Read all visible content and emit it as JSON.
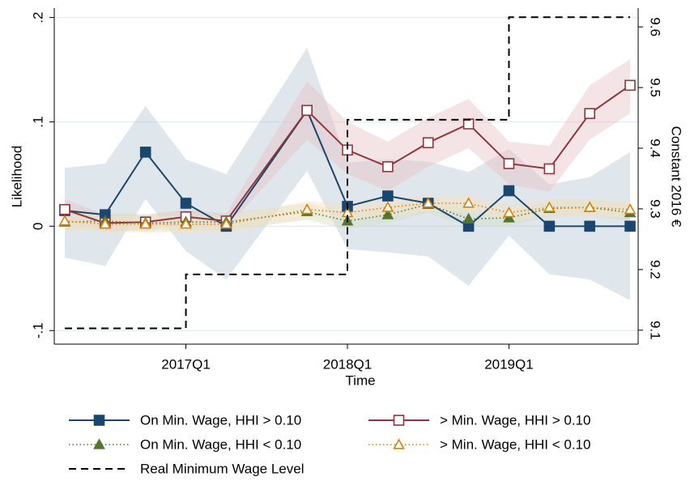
{
  "chart_data": {
    "type": "line",
    "x_label": "Time",
    "y_label": "Likelihood",
    "y2_label": "Constant 2016 €",
    "x": [
      0,
      1,
      2,
      3,
      4,
      6,
      7,
      8,
      9,
      10,
      11,
      12,
      13,
      14
    ],
    "xlim": [
      -0.26,
      14.2
    ],
    "xticks": [
      {
        "value": 3,
        "label": "2017Q1"
      },
      {
        "value": 7,
        "label": "2018Q1"
      },
      {
        "value": 11,
        "label": "2019Q1"
      }
    ],
    "ylim": [
      -0.113,
      0.209
    ],
    "yticks": [
      {
        "value": -0.1,
        "label": "-.1"
      },
      0,
      {
        "value": 0.1,
        "label": ".1"
      },
      {
        "value": 0.2,
        "label": ".2"
      }
    ],
    "y2lim": [
      9.077,
      9.631
    ],
    "y2ticks": [
      9.1,
      9.2,
      9.3,
      9.4,
      9.5,
      9.6
    ],
    "grid": true,
    "legend": "bottom",
    "series": [
      {
        "name": "On Min. Wage, HHI > 0.10",
        "color": "#1a476f",
        "marker": "square",
        "style": "solid",
        "band_color": "#b9c7d4",
        "values": [
          0.015,
          0.011,
          0.071,
          0.022,
          0,
          0.111,
          0.019,
          0.029,
          0.022,
          0,
          0.034,
          0,
          0,
          0
        ],
        "upper": [
          0.056,
          0.06,
          0.115,
          0.064,
          0.05,
          0.171,
          0.061,
          0.064,
          0.062,
          0.052,
          0.074,
          0.04,
          0.047,
          0.071
        ],
        "lower": [
          -0.03,
          -0.038,
          0.026,
          -0.024,
          -0.051,
          0.053,
          -0.022,
          -0.025,
          -0.029,
          -0.057,
          -0.009,
          -0.046,
          -0.051,
          -0.071
        ]
      },
      {
        "name": "> Min. Wage, HHI > 0.10",
        "color": "#90353b",
        "marker": "square-open",
        "style": "solid",
        "band_color": "#e6c3c6",
        "values": [
          0.016,
          0.003,
          0.004,
          0.009,
          0.005,
          0.111,
          0.073,
          0.057,
          0.08,
          0.098,
          0.06,
          0.055,
          0.108,
          0.135
        ],
        "upper": [
          0.026,
          0.011,
          0.011,
          0.016,
          0.012,
          0.139,
          0.1,
          0.081,
          0.104,
          0.122,
          0.081,
          0.077,
          0.135,
          0.16
        ],
        "lower": [
          0.005,
          -0.005,
          -0.004,
          0.002,
          -0.002,
          0.083,
          0.05,
          0.034,
          0.057,
          0.075,
          0.04,
          0.033,
          0.083,
          0.108
        ]
      },
      {
        "name": "On Min. Wage, HHI < 0.10",
        "color": "#55752f",
        "marker": "triangle",
        "style": "dotted",
        "band_color": "#d5e0c6",
        "values": [
          0.004,
          0.005,
          0.003,
          0.004,
          0.004,
          0.014,
          0.005,
          0.011,
          0.021,
          0.007,
          0.008,
          0.017,
          0.018,
          0.013
        ],
        "upper": [
          0.012,
          0.013,
          0.011,
          0.012,
          0.012,
          0.022,
          0.013,
          0.019,
          0.029,
          0.015,
          0.016,
          0.025,
          0.026,
          0.021
        ],
        "lower": [
          -0.004,
          -0.003,
          -0.005,
          -0.004,
          -0.004,
          0.006,
          -0.003,
          0.003,
          0.013,
          -0.001,
          0.0,
          0.009,
          0.01,
          0.005
        ]
      },
      {
        "name": "> Min. Wage, HHI < 0.10",
        "color": "#e37e00",
        "marker": "triangle-open",
        "style": "dotted",
        "band_color": "#f6e3c4",
        "values": [
          0.005,
          0.002,
          0.002,
          0.002,
          0.002,
          0.016,
          0.013,
          0.018,
          0.022,
          0.022,
          0.013,
          0.018,
          0.018,
          0.016
        ],
        "upper": [
          0.013,
          0.01,
          0.01,
          0.01,
          0.01,
          0.024,
          0.021,
          0.026,
          0.03,
          0.03,
          0.021,
          0.026,
          0.026,
          0.024
        ],
        "lower": [
          -0.003,
          -0.006,
          -0.006,
          -0.006,
          -0.006,
          0.008,
          0.005,
          0.01,
          0.014,
          0.014,
          0.005,
          0.01,
          0.01,
          0.008
        ]
      },
      {
        "name": "Real Minimum Wage Level",
        "color": "#000000",
        "style": "dashed",
        "axis": "y2",
        "step": "post",
        "x": [
          0,
          3,
          7,
          11,
          14
        ],
        "values": [
          9.103,
          9.192,
          9.447,
          9.616,
          9.616
        ]
      }
    ]
  }
}
